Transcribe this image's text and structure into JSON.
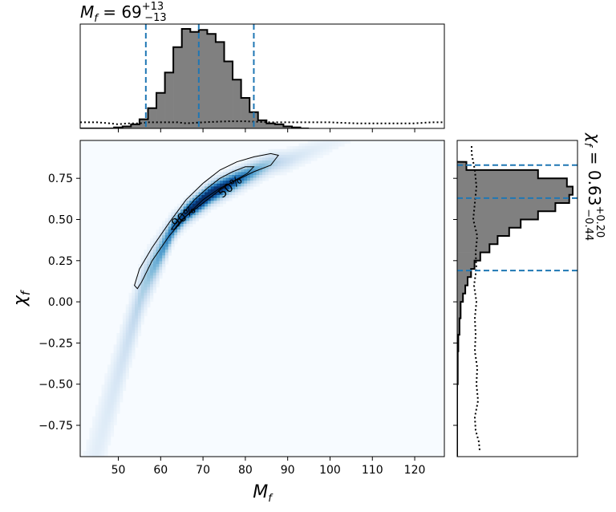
{
  "chart_data": [
    {
      "type": "heatmap",
      "panel": "joint",
      "title": "",
      "xlabel": "M_f",
      "ylabel": "χ_f",
      "xlim": [
        41,
        127
      ],
      "ylim": [
        -0.94,
        0.98
      ],
      "xticks": [
        50,
        60,
        70,
        80,
        90,
        100,
        110,
        120
      ],
      "yticks": [
        -0.75,
        -0.5,
        -0.25,
        0.0,
        0.25,
        0.5,
        0.75
      ],
      "xtick_labels": [
        "50",
        "60",
        "70",
        "80",
        "90",
        "100",
        "110",
        "120"
      ],
      "ytick_labels": [
        "−0.75",
        "−0.50",
        "−0.25",
        "0.00",
        "0.25",
        "0.50",
        "0.75"
      ],
      "colormap": "Blues",
      "density_ridge": [
        [
          52,
          -0.25
        ],
        [
          56,
          0.1
        ],
        [
          60,
          0.3
        ],
        [
          63,
          0.45
        ],
        [
          66,
          0.54
        ],
        [
          69,
          0.6
        ],
        [
          72,
          0.66
        ],
        [
          75,
          0.7
        ],
        [
          78,
          0.74
        ],
        [
          82,
          0.79
        ],
        [
          86,
          0.84
        ],
        [
          90,
          0.86
        ]
      ],
      "density_peak": [
        71,
        0.63
      ],
      "contours": [
        {
          "label": "90%",
          "points": [
            [
              53.8,
              0.1
            ],
            [
              55,
              0.2
            ],
            [
              58,
              0.33
            ],
            [
              62,
              0.48
            ],
            [
              66,
              0.62
            ],
            [
              70,
              0.72
            ],
            [
              74,
              0.8
            ],
            [
              78,
              0.85
            ],
            [
              82,
              0.88
            ],
            [
              86,
              0.9
            ],
            [
              87.8,
              0.89
            ],
            [
              86,
              0.83
            ],
            [
              82,
              0.79
            ],
            [
              78,
              0.74
            ],
            [
              74,
              0.69
            ],
            [
              70,
              0.62
            ],
            [
              66,
              0.52
            ],
            [
              62,
              0.4
            ],
            [
              58,
              0.25
            ],
            [
              55.5,
              0.12
            ],
            [
              54.5,
              0.08
            ]
          ]
        },
        {
          "label": "50%",
          "points": [
            [
              62.5,
              0.44
            ],
            [
              65,
              0.53
            ],
            [
              68,
              0.62
            ],
            [
              71,
              0.69
            ],
            [
              74,
              0.75
            ],
            [
              77,
              0.79
            ],
            [
              80,
              0.82
            ],
            [
              82,
              0.82
            ],
            [
              80.5,
              0.78
            ],
            [
              77,
              0.73
            ],
            [
              74,
              0.68
            ],
            [
              71,
              0.62
            ],
            [
              68,
              0.56
            ],
            [
              65,
              0.5
            ],
            [
              63.2,
              0.44
            ]
          ]
        }
      ],
      "contour_label_positions": [
        [
          66,
          0.5
        ],
        [
          77,
          0.68
        ]
      ]
    },
    {
      "type": "histogram",
      "panel": "top-marginal",
      "parameter": "M_f",
      "title_main": "M",
      "title_sub": "f",
      "title_eq": " = 69",
      "title_up": "+13",
      "title_low": "−13",
      "bin_edges": [
        41,
        43,
        45,
        47,
        49,
        51,
        53,
        55,
        57,
        59,
        61,
        63,
        65,
        67,
        69,
        71,
        73,
        75,
        77,
        79,
        81,
        83,
        85,
        87,
        89,
        91,
        93,
        95
      ],
      "bin_heights": [
        0,
        0,
        0,
        0,
        1,
        2,
        4,
        9,
        20,
        35,
        55,
        80,
        98,
        95,
        97,
        93,
        85,
        66,
        48,
        30,
        16,
        8,
        5,
        4,
        2,
        1,
        0
      ],
      "prior_curve_x": [
        41,
        45,
        48,
        50,
        52,
        55,
        57,
        60,
        64,
        66,
        70,
        76,
        80,
        86,
        90,
        95,
        100,
        106,
        110,
        116,
        120,
        124,
        127
      ],
      "prior_curve_y": [
        6,
        6,
        5,
        4,
        5,
        5,
        6,
        6,
        6,
        5,
        6,
        7,
        7,
        6,
        6,
        6,
        6,
        5,
        5,
        5,
        5,
        6,
        6
      ],
      "median": 69,
      "lower": 56.5,
      "upper": 82
    },
    {
      "type": "histogram",
      "panel": "right-marginal",
      "parameter": "χ_f",
      "orientation": "horizontal",
      "title_main": "χ",
      "title_sub": "f",
      "title_eq": " = 0.63",
      "title_up": "+0.20",
      "title_low": "−0.44",
      "bin_edges": [
        -0.94,
        -0.5,
        -0.3,
        -0.2,
        -0.1,
        0.0,
        0.05,
        0.1,
        0.15,
        0.2,
        0.25,
        0.3,
        0.35,
        0.4,
        0.45,
        0.5,
        0.55,
        0.6,
        0.65,
        0.7,
        0.75,
        0.8,
        0.85
      ],
      "bin_values": [
        0,
        0.5,
        1,
        2,
        3,
        5,
        7,
        9,
        12,
        15,
        20,
        28,
        35,
        45,
        55,
        70,
        85,
        97,
        100,
        95,
        70,
        8
      ],
      "prior_curve_y": [
        -0.9,
        -0.85,
        -0.78,
        -0.7,
        -0.6,
        -0.5,
        -0.4,
        -0.3,
        -0.2,
        -0.1,
        0.0,
        0.1,
        0.2,
        0.3,
        0.4,
        0.5,
        0.6,
        0.7,
        0.8,
        0.9,
        0.96
      ],
      "prior_curve_x": [
        28,
        27,
        23,
        22,
        26,
        24,
        25,
        22,
        23,
        22,
        24,
        21,
        24,
        23,
        25,
        20,
        22,
        24,
        22,
        18,
        18
      ],
      "median": 0.63,
      "lower": 0.19,
      "upper": 0.83
    }
  ]
}
